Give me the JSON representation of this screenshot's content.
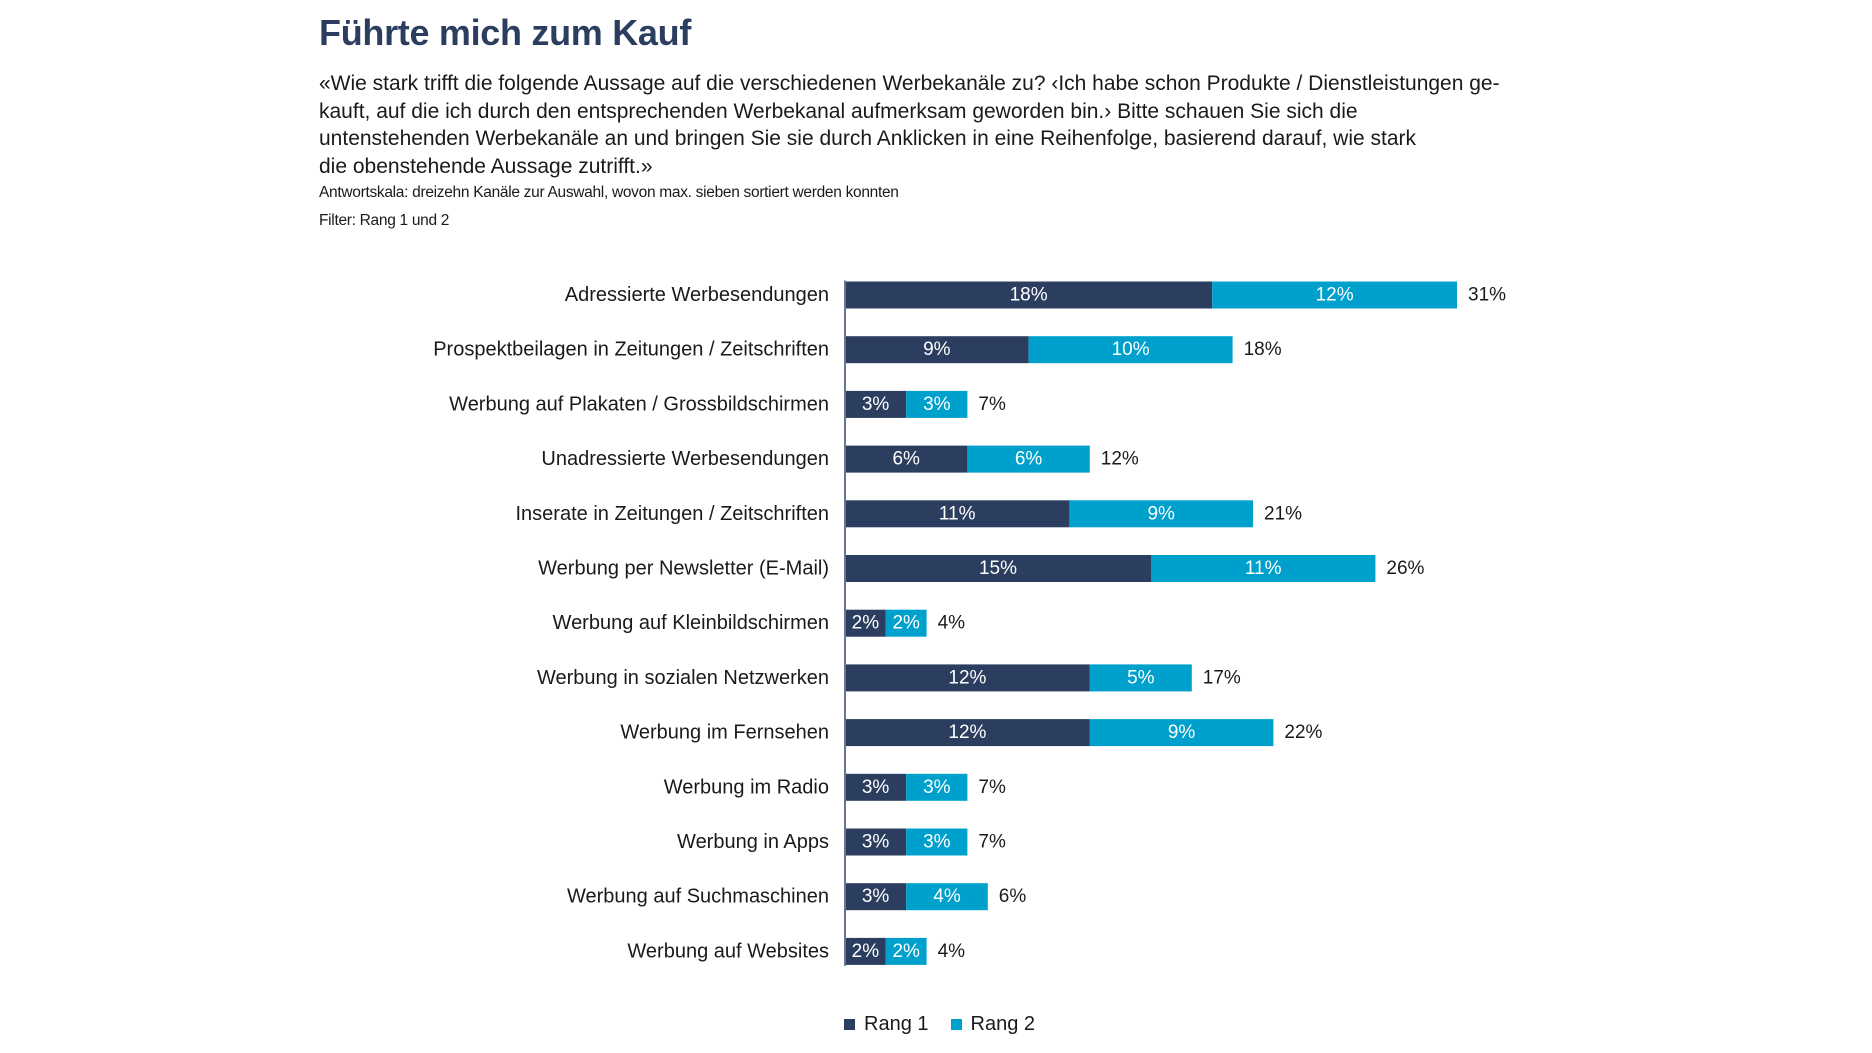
{
  "header": {
    "title": "Führte mich zum Kauf",
    "question_lines": [
      "«Wie stark trifft die folgende Aussage auf die verschiedenen Werbekanäle zu? ‹Ich habe schon Produkte / Dienstleistungen ge-",
      "kauft, auf die ich durch den entsprechenden Werbekanal aufmerksam geworden bin.› Bitte schauen Sie sich die",
      "untenstehenden Werbekanäle an und bringen Sie sie durch Anklicken in eine Reihenfolge, basierend darauf, wie stark",
      "die obenstehende Aussage zutrifft.»"
    ],
    "scale_note": "Antwortskala: dreizehn Kanäle zur Auswahl, wovon max. sieben sortiert werden konnten",
    "filter_note": "Filter: Rang 1 und 2"
  },
  "colors": {
    "rang1": "#2c3e5f",
    "rang2": "#00a0cc",
    "axis": "#6b7590",
    "title": "#2c3e5f"
  },
  "legend": {
    "items": [
      {
        "label": "Rang 1",
        "color": "#2c3e5f"
      },
      {
        "label": "Rang 2",
        "color": "#00a0cc"
      }
    ]
  },
  "chart_data": {
    "type": "bar",
    "orientation": "horizontal",
    "stacked": true,
    "title": "Führte mich zum Kauf",
    "xlabel": "",
    "ylabel": "",
    "unit": "%",
    "xlim": [
      0,
      31
    ],
    "grid": false,
    "legend_position": "bottom",
    "categories": [
      "Adressierte Werbesendungen",
      "Prospektbeilagen in Zeitungen / Zeitschriften",
      "Werbung auf Plakaten / Grossbildschirmen",
      "Unadressierte Werbesendungen",
      "Inserate in Zeitungen / Zeitschriften",
      "Werbung per Newsletter (E-Mail)",
      "Werbung auf Kleinbildschirmen",
      "Werbung in sozialen Netzwerken",
      "Werbung im Fernsehen",
      "Werbung im Radio",
      "Werbung in Apps",
      "Werbung auf Suchmaschinen",
      "Werbung auf Websites"
    ],
    "series": [
      {
        "name": "Rang 1",
        "values": [
          18,
          9,
          3,
          6,
          11,
          15,
          2,
          12,
          12,
          3,
          3,
          3,
          2
        ]
      },
      {
        "name": "Rang 2",
        "values": [
          12,
          10,
          3,
          6,
          9,
          11,
          2,
          5,
          9,
          3,
          3,
          4,
          2
        ]
      }
    ],
    "totals": [
      31,
      18,
      7,
      12,
      21,
      26,
      4,
      17,
      22,
      7,
      7,
      6,
      4
    ]
  }
}
